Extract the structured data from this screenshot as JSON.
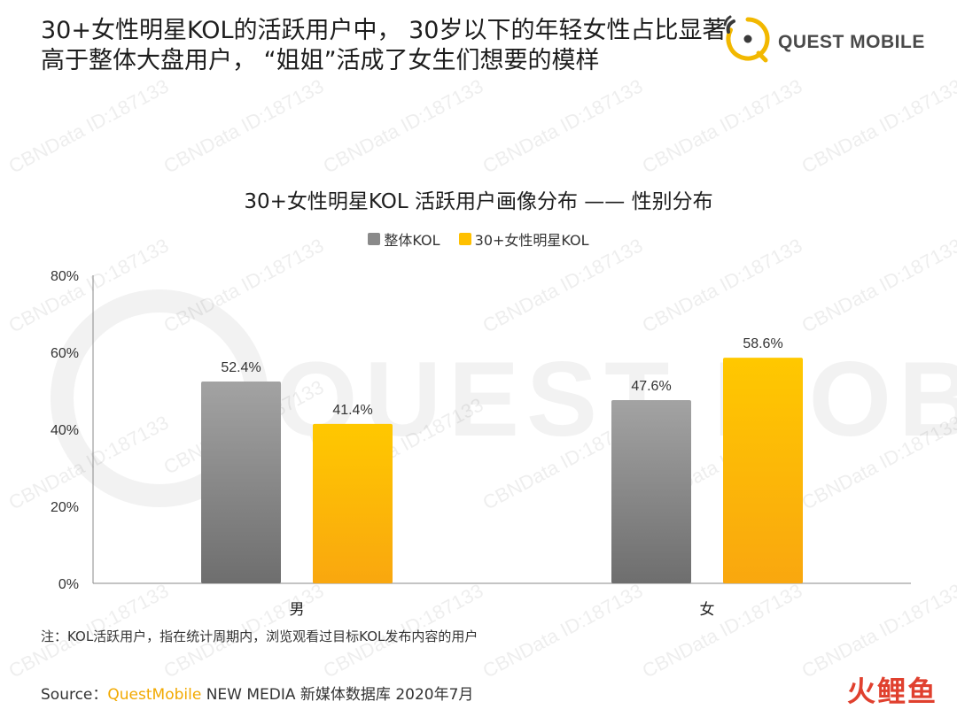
{
  "headline": {
    "line1": "30+女性明星KOL的活跃用户中， 30岁以下的年轻女性占比显著",
    "line2": "高于整体大盘用户，  “姐姐”活成了女生们想要的模样"
  },
  "logo": {
    "text": "QUEST MOBILE"
  },
  "watermark": "CBNData ID:187133",
  "background_wordmark": "QUEST MOBILE",
  "colors": {
    "series1": "#8a8a8a",
    "series2": "#ffc000",
    "accent": "#f2a900",
    "corner": "#e0402e"
  },
  "chart_data": {
    "type": "bar",
    "title": "30+女性明星KOL 活跃用户画像分布 —— 性别分布",
    "categories": [
      "男",
      "女"
    ],
    "series": [
      {
        "name": "整体KOL",
        "values": [
          52.4,
          47.6
        ],
        "labels": [
          "52.4%",
          "47.6%"
        ]
      },
      {
        "name": "30+女性明星KOL",
        "values": [
          41.4,
          58.6
        ],
        "labels": [
          "41.4%",
          "58.6%"
        ]
      }
    ],
    "ylim": [
      0,
      80
    ],
    "yticks": [
      {
        "value": 0,
        "label": "0%"
      },
      {
        "value": 20,
        "label": "20%"
      },
      {
        "value": 40,
        "label": "40%"
      },
      {
        "value": 60,
        "label": "60%"
      },
      {
        "value": 80,
        "label": "80%"
      }
    ],
    "grid": false,
    "legend_position": "top-center"
  },
  "note": "注：KOL活跃用户，指在统计周期内，浏览观看过目标KOL发布内容的用户",
  "source": {
    "prefix": "Source：",
    "brand": "QuestMobile",
    "rest": " NEW MEDIA 新媒体数据库 2020年7月"
  },
  "corner_mark": "火鲤鱼"
}
